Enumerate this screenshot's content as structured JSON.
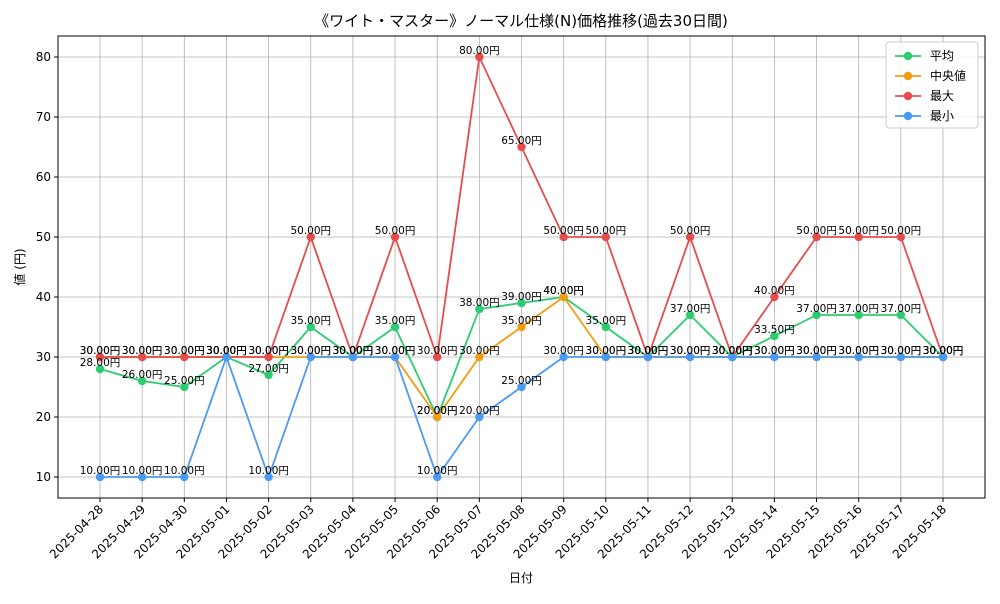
{
  "chart_data": {
    "type": "line",
    "title": "《ワイト・マスター》ノーマル仕様(N)価格推移(過去30日間)",
    "xlabel": "日付",
    "ylabel": "値 (円)",
    "ylim": [
      6.5,
      83.5
    ],
    "yticks": [
      10,
      20,
      30,
      40,
      50,
      60,
      70,
      80
    ],
    "grid": true,
    "legend_position": "top-right",
    "categories": [
      "2025-04-28",
      "2025-04-29",
      "2025-04-30",
      "2025-05-01",
      "2025-05-02",
      "2025-05-03",
      "2025-05-04",
      "2025-05-05",
      "2025-05-06",
      "2025-05-07",
      "2025-05-08",
      "2025-05-09",
      "2025-05-10",
      "2025-05-11",
      "2025-05-12",
      "2025-05-13",
      "2025-05-14",
      "2025-05-15",
      "2025-05-16",
      "2025-05-17",
      "2025-05-18"
    ],
    "series": [
      {
        "name": "平均",
        "color": "#2ecc71",
        "values": [
          28,
          26,
          25,
          30,
          27,
          35,
          30,
          35,
          20,
          38,
          39,
          40,
          35,
          30,
          37,
          30,
          33.5,
          37,
          37,
          37,
          30
        ],
        "labels": [
          "28.00円",
          "26.00円",
          "25.00円",
          "30.00円",
          "27.00円",
          "35.00円",
          "30.00円",
          "35.00円",
          "20.00円",
          "38.00円",
          "39.00円",
          "40.00円",
          "35.00円",
          "30.00円",
          "37.00円",
          "30.00円",
          "33.50円",
          "37.00円",
          "37.00円",
          "37.00円",
          "30.00円"
        ]
      },
      {
        "name": "中央値",
        "color": "#f39c12",
        "values": [
          30,
          30,
          30,
          30,
          30,
          30,
          30,
          30,
          20,
          30,
          35,
          40,
          30,
          30,
          30,
          30,
          30,
          30,
          30,
          30,
          30
        ],
        "labels": [
          "30.00円",
          "30.00円",
          "30.00円",
          "30.00円",
          "30.00円",
          "30.00円",
          "30.00円",
          "30.00円",
          "20.00円",
          "30.00円",
          "35.00円",
          "40.00円",
          "30.00円",
          "30.00円",
          "30.00円",
          "30.00円",
          "30.00円",
          "30.00円",
          "30.00円",
          "30.00円",
          "30.00円"
        ]
      },
      {
        "name": "最大",
        "color": "#e74c4c",
        "values": [
          30,
          30,
          30,
          30,
          30,
          50,
          30,
          50,
          30,
          80,
          65,
          50,
          50,
          30,
          50,
          30,
          40,
          50,
          50,
          50,
          30
        ],
        "labels": [
          "30.00円",
          "30.00円",
          "30.00円",
          "30.00円",
          "30.00円",
          "50.00円",
          "30.00円",
          "50.00円",
          "30.00円",
          "80.00円",
          "65.00円",
          "50.00円",
          "50.00円",
          "30.00円",
          "50.00円",
          "30.00円",
          "40.00円",
          "50.00円",
          "50.00円",
          "50.00円",
          "30.00円"
        ]
      },
      {
        "name": "最小",
        "color": "#4a9af5",
        "values": [
          10,
          10,
          10,
          30,
          10,
          30,
          30,
          30,
          10,
          20,
          25,
          30,
          30,
          30,
          30,
          30,
          30,
          30,
          30,
          30,
          30
        ],
        "labels": [
          "10.00円",
          "10.00円",
          "10.00円",
          "30.00円",
          "10.00円",
          "30.00円",
          "30.00円",
          "30.00円",
          "10.00円",
          "20.00円",
          "25.00円",
          "30.00円",
          "30.00円",
          "30.00円",
          "30.00円",
          "30.00円",
          "30.00円",
          "30.00円",
          "30.00円",
          "30.00円",
          "30.00円"
        ]
      }
    ]
  }
}
